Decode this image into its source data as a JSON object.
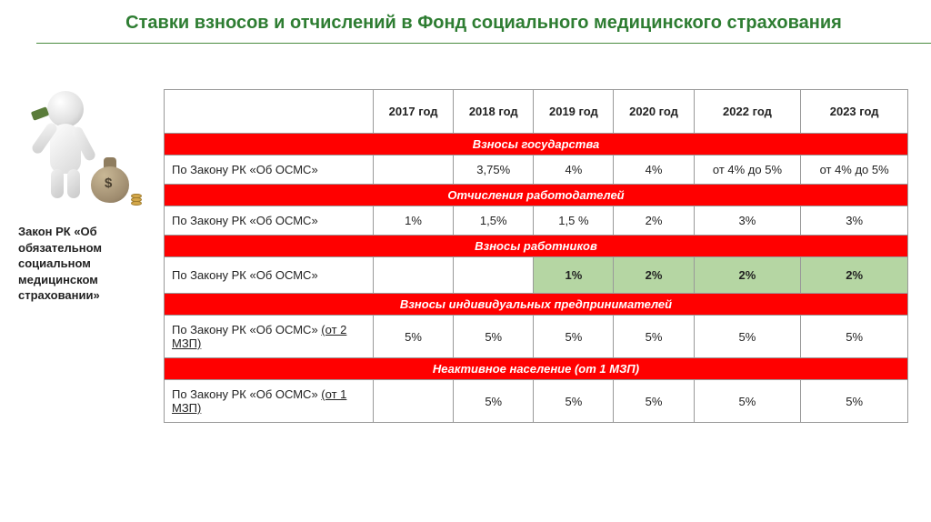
{
  "title": "Ставки взносов и отчислений в Фонд социального медицинского страхования",
  "sidebar": {
    "law_label": "Закон РК «Об обязательном социальном медицинском страховании»"
  },
  "colors": {
    "title": "#2e7d32",
    "section_header_bg": "#ff0000",
    "section_header_text": "#ffffff",
    "highlight_bg": "#b5d6a3",
    "border": "#999999",
    "underline": "#4a8c3f"
  },
  "table": {
    "columns": [
      "",
      "2017 год",
      "2018 год",
      "2019 год",
      "2020 год",
      "2022 год",
      "2023 год"
    ],
    "sections": [
      {
        "header": "Взносы государства",
        "rows": [
          {
            "label": "По Закону РК «Об ОСМС»",
            "sublabel": "",
            "highlight": false,
            "cells": [
              "",
              "3,75%",
              "4%",
              "4%",
              "от 4% до 5%",
              "от 4% до 5%"
            ]
          }
        ]
      },
      {
        "header": "Отчисления работодателей",
        "rows": [
          {
            "label": "По Закону РК «Об ОСМС»",
            "sublabel": "",
            "highlight": false,
            "cells": [
              "1%",
              "1,5%",
              "1,5 %",
              "2%",
              "3%",
              "3%"
            ]
          }
        ]
      },
      {
        "header": "Взносы работников",
        "rows": [
          {
            "label": "По Закону РК «Об ОСМС»",
            "sublabel": "",
            "highlight": true,
            "cells": [
              "",
              "",
              "1%",
              "2%",
              "2%",
              "2%"
            ]
          }
        ]
      },
      {
        "header": "Взносы индивидуальных предпринимателей",
        "rows": [
          {
            "label": "По Закону РК «Об ОСМС»  ",
            "sublabel": "(от 2 МЗП)",
            "highlight": false,
            "cells": [
              "5%",
              "5%",
              "5%",
              "5%",
              "5%",
              "5%"
            ]
          }
        ]
      },
      {
        "header": "Неактивное население (от 1 МЗП)",
        "rows": [
          {
            "label": "По Закону РК «Об ОСМС»  ",
            "sublabel": "(от 1 МЗП)",
            "highlight": false,
            "cells": [
              "",
              "5%",
              "5%",
              "5%",
              "5%",
              "5%"
            ]
          }
        ]
      }
    ]
  }
}
